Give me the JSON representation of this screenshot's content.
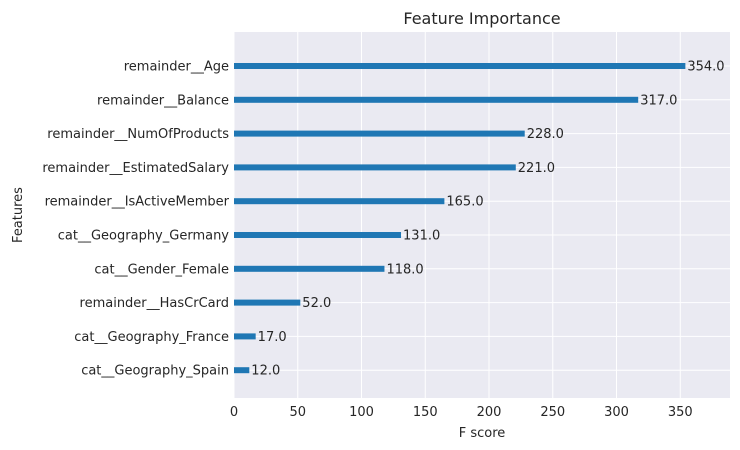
{
  "chart_data": {
    "type": "bar",
    "orientation": "horizontal",
    "title": "Feature Importance",
    "xlabel": "F score",
    "ylabel": "Features",
    "categories": [
      "remainder__Age",
      "remainder__Balance",
      "remainder__NumOfProducts",
      "remainder__EstimatedSalary",
      "remainder__IsActiveMember",
      "cat__Geography_Germany",
      "cat__Gender_Female",
      "remainder__HasCrCard",
      "cat__Geography_France",
      "cat__Geography_Spain"
    ],
    "values": [
      354.0,
      317.0,
      228.0,
      221.0,
      165.0,
      131.0,
      118.0,
      52.0,
      17.0,
      12.0
    ],
    "data_labels": [
      "354.0",
      "317.0",
      "228.0",
      "221.0",
      "165.0",
      "131.0",
      "118.0",
      "52.0",
      "17.0",
      "12.0"
    ],
    "xlim": [
      0,
      389
    ],
    "xticks": [
      0,
      50,
      100,
      150,
      200,
      250,
      300,
      350
    ],
    "xtick_labels": [
      "0",
      "50",
      "100",
      "150",
      "200",
      "250",
      "300",
      "350"
    ],
    "grid": true,
    "bar_color": "#1f77b4",
    "plot_background": "#eaeaf2",
    "grid_color": "#ffffff"
  }
}
